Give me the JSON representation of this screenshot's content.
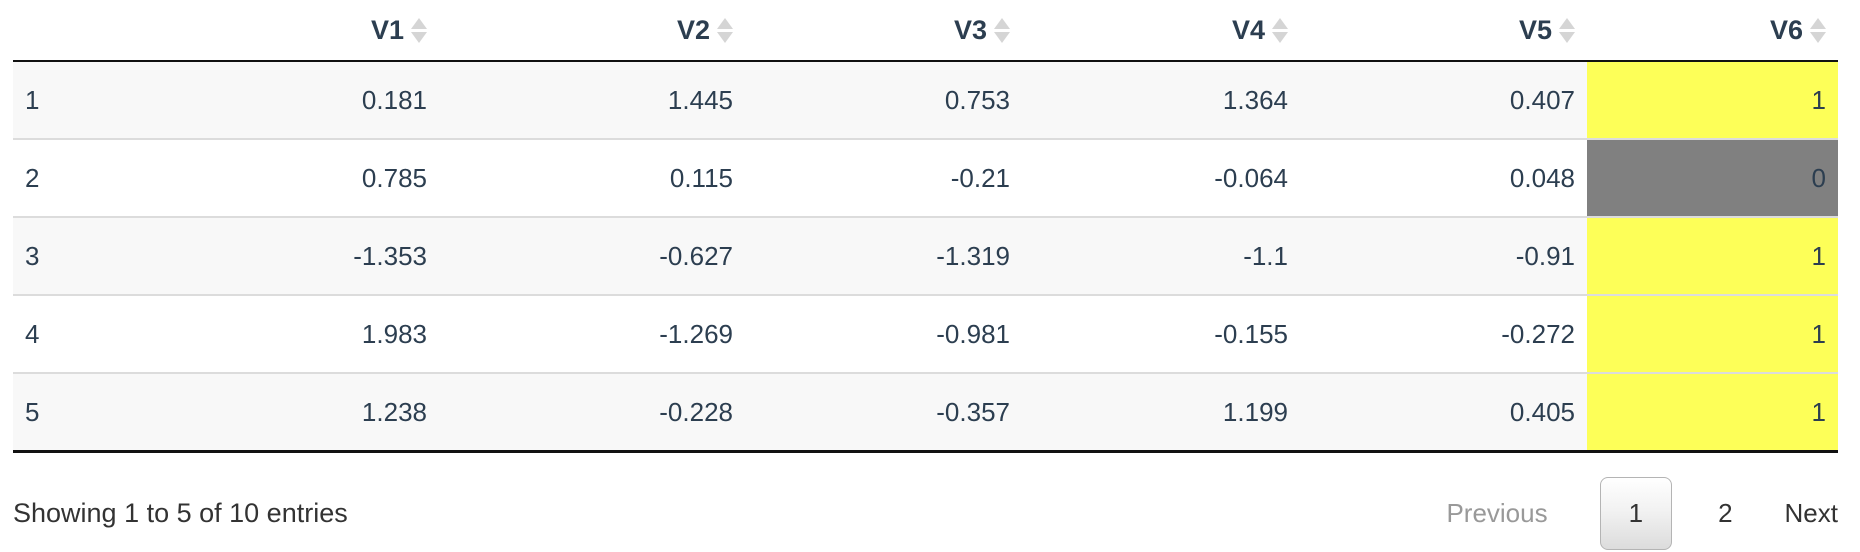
{
  "table": {
    "header": {
      "row_name_label": "",
      "columns": [
        "V1",
        "V2",
        "V3",
        "V4",
        "V5",
        "V6"
      ]
    },
    "rows": [
      {
        "name": "1",
        "cells": [
          "0.181",
          "1.445",
          "0.753",
          "1.364",
          "0.407"
        ],
        "v6": {
          "value": "1",
          "highlight": "yellow"
        }
      },
      {
        "name": "2",
        "cells": [
          "0.785",
          "0.115",
          "-0.21",
          "-0.064",
          "0.048"
        ],
        "v6": {
          "value": "0",
          "highlight": "gray"
        }
      },
      {
        "name": "3",
        "cells": [
          "-1.353",
          "-0.627",
          "-1.319",
          "-1.1",
          "-0.91"
        ],
        "v6": {
          "value": "1",
          "highlight": "yellow"
        }
      },
      {
        "name": "4",
        "cells": [
          "1.983",
          "-1.269",
          "-0.981",
          "-0.155",
          "-0.272"
        ],
        "v6": {
          "value": "1",
          "highlight": "yellow"
        }
      },
      {
        "name": "5",
        "cells": [
          "1.238",
          "-0.228",
          "-0.357",
          "1.199",
          "0.405"
        ],
        "v6": {
          "value": "1",
          "highlight": "yellow"
        }
      }
    ]
  },
  "footer": {
    "info": "Showing 1 to 5 of 10 entries",
    "pagination": {
      "previous_label": "Previous",
      "pages": [
        {
          "label": "1",
          "active": true
        },
        {
          "label": "2",
          "active": false
        }
      ],
      "next_label": "Next"
    }
  },
  "colors": {
    "highlight_yellow": "#fdff58",
    "highlight_gray": "#808080",
    "header_text": "#2c3e50",
    "cell_text": "#2c3e50",
    "stripe": "#f8f8f8",
    "sort_arrow": "#d5d5d5",
    "dark_border": "#111111"
  }
}
